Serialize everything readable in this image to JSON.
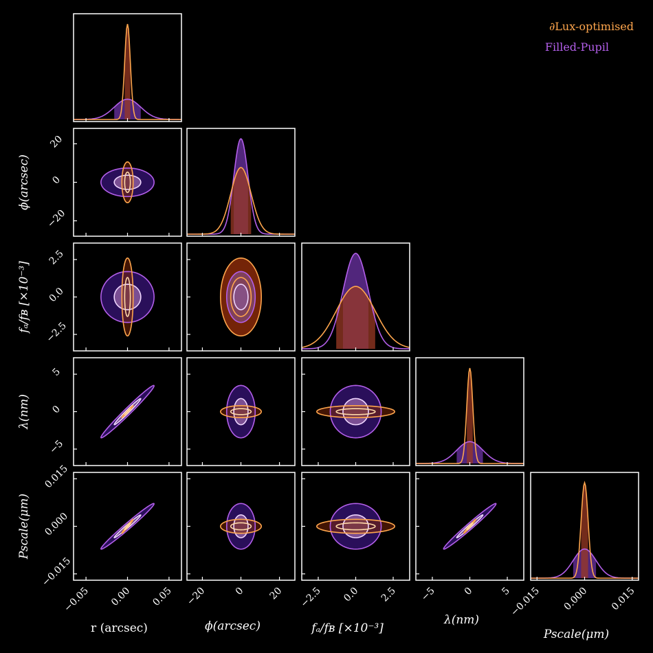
{
  "chart_data": {
    "type": "corner",
    "title": "",
    "legend": {
      "placement": "top-right",
      "entries": [
        {
          "name": "∂Lux-optimised",
          "color": "#ffa64d"
        },
        {
          "name": "Filled-Pupil",
          "color": "#b35fea"
        }
      ]
    },
    "colors": {
      "background": "#000000",
      "frame": "#ffffff",
      "orange": "#ffa64d",
      "purple": "#b35fea",
      "outer_fill": "#2a0f5a",
      "inner_line": "#f0d6ff",
      "inner_fill": "#8a5a9e",
      "orange_fill": "#7a2608"
    },
    "parameters": [
      {
        "key": "r",
        "xlabel": "r (arcsec)",
        "ylabel": "",
        "range": [
          -0.065,
          0.065
        ],
        "ticks": [
          -0.05,
          0.0,
          0.05
        ],
        "tick_labels": [
          "−0.05",
          "0.00",
          "0.05"
        ]
      },
      {
        "key": "phi",
        "xlabel": "ϕ(arcsec)",
        "ylabel": "ϕ(arcsec)",
        "range": [
          -28,
          28
        ],
        "ticks": [
          -20,
          0,
          20
        ],
        "tick_labels": [
          "−20",
          "0",
          "20"
        ]
      },
      {
        "key": "fratio",
        "xlabel": "fₐ/fʙ [×10⁻³]",
        "ylabel": "fₐ/fʙ [×10⁻³]",
        "range": [
          -3.6,
          3.6
        ],
        "ticks": [
          -2.5,
          0.0,
          2.5
        ],
        "tick_labels": [
          "−2.5",
          "0.0",
          "2.5"
        ]
      },
      {
        "key": "lambda",
        "xlabel": "λ(nm)",
        "ylabel": "λ(nm)",
        "range": [
          -7.2,
          7.2
        ],
        "ticks": [
          -5,
          0,
          5
        ],
        "tick_labels": [
          "−5",
          "0",
          "5"
        ]
      },
      {
        "key": "pscale",
        "xlabel": "Pscale(μm)",
        "ylabel": "Pscale(μm)",
        "range": [
          -0.017,
          0.017
        ],
        "ticks": [
          -0.015,
          0.0,
          0.015
        ],
        "tick_labels": [
          "−0.015",
          "0.000",
          "0.015"
        ]
      }
    ],
    "series": [
      {
        "name": "∂Lux-optimised",
        "color": "#ffa64d",
        "sigma": [
          0.0034,
          5.3,
          1.3,
          0.4,
          0.0011
        ]
      },
      {
        "name": "Filled-Pupil",
        "color": "#b35fea",
        "sigma": [
          0.016,
          3.7,
          0.85,
          1.75,
          0.0036
        ]
      }
    ],
    "correlations": [
      {
        "pair": [
          "r",
          "lambda"
        ],
        "rho": 0.985
      },
      {
        "pair": [
          "r",
          "pscale"
        ],
        "rho": 0.985
      },
      {
        "pair": [
          "lambda",
          "pscale"
        ],
        "rho": 0.985
      }
    ],
    "contour_levels_sigma": [
      1,
      2
    ]
  }
}
